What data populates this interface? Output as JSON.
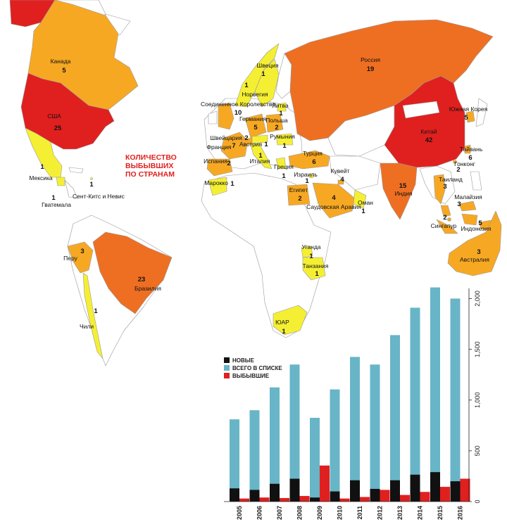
{
  "heading": {
    "line1": "КОЛИЧЕСТВО",
    "line2": "ВЫБЫВШИХ",
    "line3": "ПО СТРАНАМ"
  },
  "palette": {
    "ocean": "#ffffff",
    "land_none": "#ffffff",
    "border": "#9a9a9a",
    "level_1": "#f5ef33",
    "level_2": "#f7a823",
    "level_3": "#ee6f22",
    "level_4": "#e0201f"
  },
  "countries": [
    {
      "name": "Канада",
      "count": "5",
      "level": 2
    },
    {
      "name": "США",
      "count": "25",
      "level": 4
    },
    {
      "name": "Мексика",
      "count": "1",
      "level": 1
    },
    {
      "name": "Гватемала",
      "count": "1",
      "level": 1
    },
    {
      "name": "Сент-Китс и Невис",
      "count": "1",
      "level": 1
    },
    {
      "name": "Перу",
      "count": "3",
      "level": 2
    },
    {
      "name": "Бразилия",
      "count": "23",
      "level": 3
    },
    {
      "name": "Чили",
      "count": "1",
      "level": 1
    },
    {
      "name": "Швеция",
      "count": "1",
      "level": 1
    },
    {
      "name": "Норвегия",
      "count": "1",
      "level": 1
    },
    {
      "name": "Соединенное Королевство",
      "count": "10",
      "level": 2
    },
    {
      "name": "Литва",
      "count": "1",
      "level": 1
    },
    {
      "name": "Германия",
      "count": "5",
      "level": 2
    },
    {
      "name": "Польша",
      "count": "2",
      "level": 2
    },
    {
      "name": "Швейцария",
      "count": "2",
      "level": 2
    },
    {
      "name": "Франция",
      "count": "7",
      "level": 2
    },
    {
      "name": "Австрия",
      "count": "1",
      "level": 1
    },
    {
      "name": "Румыния",
      "count": "1",
      "level": 1
    },
    {
      "name": "Испания",
      "count": "2",
      "level": 2
    },
    {
      "name": "Италия",
      "count": "1",
      "level": 1
    },
    {
      "name": "Греция",
      "count": "1",
      "level": 1
    },
    {
      "name": "Марокко",
      "count": "1",
      "level": 1
    },
    {
      "name": "Турция",
      "count": "6",
      "level": 2
    },
    {
      "name": "Израиль",
      "count": "1",
      "level": 1
    },
    {
      "name": "Кувейт",
      "count": "4",
      "level": 2
    },
    {
      "name": "Египет",
      "count": "2",
      "level": 2
    },
    {
      "name": "Саудовская Аравия",
      "count": "4",
      "level": 2
    },
    {
      "name": "Оман",
      "count": "1",
      "level": 1
    },
    {
      "name": "Уганда",
      "count": "1",
      "level": 1
    },
    {
      "name": "Танзания",
      "count": "1",
      "level": 1
    },
    {
      "name": "ЮАР",
      "count": "1",
      "level": 1
    },
    {
      "name": "Россия",
      "count": "19",
      "level": 3
    },
    {
      "name": "Китай",
      "count": "42",
      "level": 4
    },
    {
      "name": "Индия",
      "count": "15",
      "level": 3
    },
    {
      "name": "Южная Корея",
      "count": "5",
      "level": 2
    },
    {
      "name": "Тайвань",
      "count": "6",
      "level": 2
    },
    {
      "name": "Гонконг",
      "count": "2",
      "level": 2
    },
    {
      "name": "Таиланд",
      "count": "3",
      "level": 2
    },
    {
      "name": "Малайзия",
      "count": "3",
      "level": 2
    },
    {
      "name": "Сингапур",
      "count": "2",
      "level": 2
    },
    {
      "name": "Индонезия",
      "count": "5",
      "level": 2
    },
    {
      "name": "Австралия",
      "count": "3",
      "level": 2
    }
  ],
  "chart_data": {
    "type": "bar",
    "categories": [
      "2005",
      "2006",
      "2007",
      "2008",
      "2009",
      "2010",
      "2011",
      "2012",
      "2013",
      "2014",
      "2015",
      "2016"
    ],
    "series": [
      {
        "name": "НОВЫЕ",
        "color": "#111111",
        "values": [
          130,
          115,
          175,
          225,
          40,
          100,
          210,
          125,
          210,
          265,
          290,
          200
        ]
      },
      {
        "name": "ВСЕГО В СПИСКЕ",
        "color": "#68b5c7",
        "values": [
          810,
          900,
          1125,
          1350,
          825,
          1105,
          1425,
          1350,
          1640,
          1910,
          2110,
          2000
        ]
      },
      {
        "name": "ВЫБЫВШИЕ",
        "color": "#e0201f",
        "values": [
          30,
          40,
          35,
          55,
          355,
          30,
          45,
          115,
          65,
          95,
          145,
          225
        ]
      }
    ],
    "ylim": [
      0,
      2100
    ],
    "yticks": [
      "0",
      "500",
      "1,000",
      "1,500",
      "2,000"
    ],
    "ytick_values": [
      0,
      500,
      1000,
      1500,
      2000
    ],
    "legend_position": "left",
    "grid": false
  }
}
